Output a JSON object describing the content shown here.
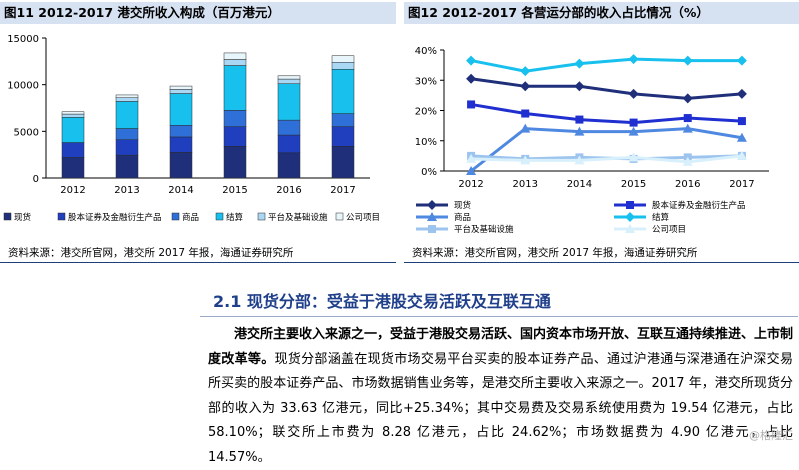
{
  "figure_left": {
    "title": "图11 2012-2017 港交所收入构成（百万港元）",
    "source": "资料来源：港交所官网，港交所 2017 年报，海通证券研究所"
  },
  "figure_right": {
    "title": "图12 2012-2017 各营运分部的收入占比情况（%）",
    "source": "资料来源：港交所官网，港交所 2017 年报，海通证券研究所"
  },
  "chart_data": [
    {
      "type": "bar",
      "stacked": true,
      "categories": [
        "2012",
        "2013",
        "2014",
        "2015",
        "2016",
        "2017"
      ],
      "ylim": [
        0,
        15000
      ],
      "yticks": [
        "0",
        "5000",
        "10000",
        "15000"
      ],
      "series": [
        {
          "name": "现货",
          "color": "#1f2f7a",
          "values": [
            2200,
            2450,
            2750,
            3400,
            2700,
            3400
          ]
        },
        {
          "name": "股本证券及金融衍生产品",
          "color": "#1f3fbf",
          "values": [
            1600,
            1650,
            1650,
            2100,
            1900,
            2100
          ]
        },
        {
          "name": "商品",
          "color": "#2f6fd8",
          "values": [
            0,
            1200,
            1250,
            1750,
            1600,
            1400
          ]
        },
        {
          "name": "结算",
          "color": "#18c0ee",
          "values": [
            2700,
            2900,
            3400,
            4800,
            3900,
            4750
          ]
        },
        {
          "name": "平台及基础设施",
          "color": "#aad8f4",
          "values": [
            350,
            400,
            450,
            650,
            500,
            750
          ]
        },
        {
          "name": "公司项目",
          "color": "#e8f6fc",
          "values": [
            250,
            300,
            350,
            700,
            350,
            700
          ]
        }
      ],
      "legend_position": "bottom"
    },
    {
      "type": "line",
      "categories": [
        "2012",
        "2013",
        "2014",
        "2015",
        "2016",
        "2017"
      ],
      "ylim": [
        0,
        40
      ],
      "yticks": [
        "0%",
        "10%",
        "20%",
        "30%",
        "40%"
      ],
      "series": [
        {
          "name": "现货",
          "color": "#1f2f7a",
          "values": [
            30.5,
            28.0,
            28.0,
            25.5,
            24.0,
            25.5
          ]
        },
        {
          "name": "股本证券及金融衍生产品",
          "color": "#1f2fd0",
          "values": [
            22.0,
            19.0,
            17.0,
            16.0,
            17.5,
            16.5
          ]
        },
        {
          "name": "商品",
          "color": "#4f88e0",
          "values": [
            0.0,
            14.0,
            13.0,
            13.0,
            14.0,
            11.0
          ]
        },
        {
          "name": "结算",
          "color": "#18c0ee",
          "values": [
            36.5,
            33.0,
            35.5,
            37.0,
            36.5,
            36.5
          ]
        },
        {
          "name": "平台及基础设施",
          "color": "#9cc4ee",
          "values": [
            5.0,
            4.0,
            4.5,
            4.0,
            4.5,
            5.0
          ]
        },
        {
          "name": "公司项目",
          "color": "#d8f0fb",
          "values": [
            4.0,
            3.5,
            3.5,
            4.5,
            3.0,
            5.0
          ]
        }
      ],
      "legend_position": "bottom"
    }
  ],
  "section": {
    "heading": "2.1 现货分部：受益于港股交易活跃及互联互通",
    "lead": "港交所主要收入来源之一，受益于港股交易活跃、国内资本市场开放、互联互通持续推进、上市制度改革等。",
    "body": "现货分部涵盖在现货市场交易平台买卖的股本证券产品、通过沪港通与深港通在沪深交易所买卖的股本证券产品、市场数据销售业务等，是港交所主要收入来源之一。2017 年，港交所现货分部的收入为 33.63 亿港元，同比+25.34%；其中交易费及交易系统使用费为 19.54 亿港元，占比 58.10%；联交所上市费为 8.28 亿港元，占比 24.62%；市场数据费为 4.90 亿港元，占比 14.57%。"
  },
  "watermark": "@格隆汇"
}
